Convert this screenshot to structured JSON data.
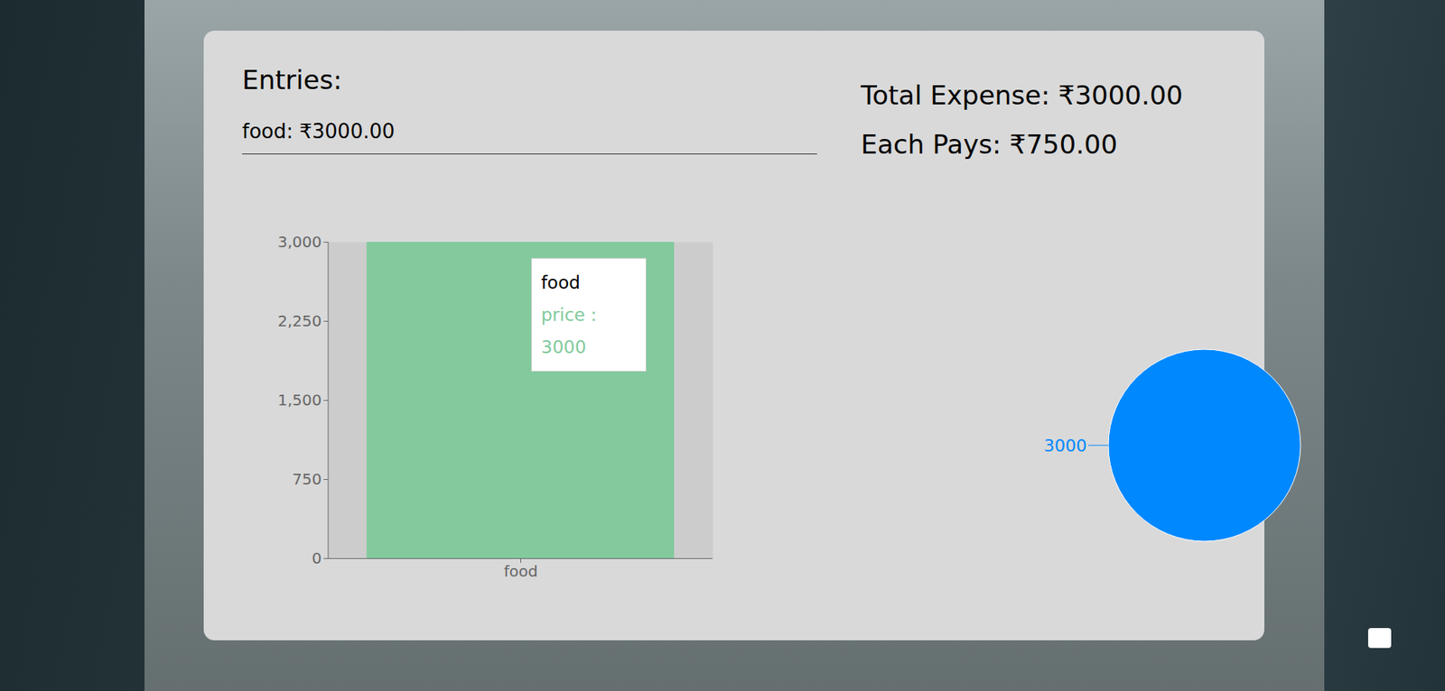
{
  "entries_heading": "Entries:",
  "entries": [
    {
      "text": "food: ₹3000.00"
    }
  ],
  "summary": [
    "Total Expense: ₹3000.00",
    "Each Pays: ₹750.00"
  ],
  "chart_data": [
    {
      "type": "bar",
      "categories": [
        "food"
      ],
      "values": [
        3000
      ],
      "color": "#82ca9d",
      "ylim": [
        0,
        3000
      ],
      "yticks": [
        0,
        750,
        1500,
        2250,
        3000
      ],
      "tooltip": {
        "title": "food",
        "text": "price : 3000"
      }
    },
    {
      "type": "pie",
      "categories": [
        null
      ],
      "values": [
        3000
      ],
      "colors": [
        "#0088fe"
      ],
      "data_labels": true
    }
  ]
}
